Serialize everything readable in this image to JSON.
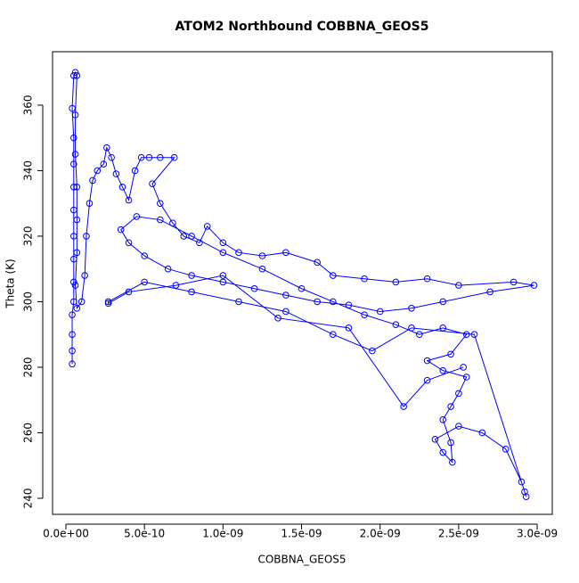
{
  "chart_data": {
    "type": "line-points",
    "title": "ATOM2 Northbound COBBNA_GEOS5",
    "x_label": "COBBNA_GEOS5",
    "y_label": "Theta (K)",
    "color": "#0000ff",
    "grid": false,
    "xlim": [
      -8.5e-11,
      3.096e-09
    ],
    "ylim": [
      235.1,
      376.3
    ],
    "xticks": [
      {
        "value": 0,
        "label": "0.0e+00"
      },
      {
        "value": 5e-10,
        "label": "5.0e-10"
      },
      {
        "value": 1e-09,
        "label": "1.0e-09"
      },
      {
        "value": 1.5e-09,
        "label": "1.5e-09"
      },
      {
        "value": 2e-09,
        "label": "2.0e-09"
      },
      {
        "value": 2.5e-09,
        "label": "2.5e-09"
      },
      {
        "value": 3e-09,
        "label": "3.0e-09"
      }
    ],
    "yticks": [
      240,
      260,
      280,
      300,
      320,
      340,
      360
    ],
    "x": [
      4e-11,
      4e-11,
      4e-11,
      4e-11,
      5e-11,
      5e-11,
      5e-11,
      5e-11,
      5e-11,
      5e-11,
      5e-11,
      5e-11,
      4e-11,
      5e-11,
      6e-11,
      7e-11,
      6e-11,
      6e-11,
      7e-11,
      7e-11,
      7e-11,
      6e-11,
      7e-11,
      1e-10,
      1.2e-10,
      1.3e-10,
      1.5e-10,
      1.7e-10,
      2e-10,
      2.4e-10,
      2.6e-10,
      2.9e-10,
      3.2e-10,
      3.6e-10,
      4e-10,
      4.4e-10,
      4.8e-10,
      5.3e-10,
      6e-10,
      6.9e-10,
      5.5e-10,
      6e-10,
      6.8e-10,
      7.5e-10,
      8.5e-10,
      9e-10,
      1e-09,
      1.1e-09,
      1.25e-09,
      1.4e-09,
      1.6e-09,
      1.7e-09,
      1.9e-09,
      2.1e-09,
      2.3e-09,
      2.5e-09,
      2.85e-09,
      2.98e-09,
      2.7e-09,
      2.4e-09,
      2.2e-09,
      2e-09,
      1.8e-09,
      1.6e-09,
      1.4e-09,
      1.2e-09,
      1e-09,
      8e-10,
      6.5e-10,
      5e-10,
      4e-10,
      3.5e-10,
      4.5e-10,
      6e-10,
      8e-10,
      1e-09,
      1.25e-09,
      1.5e-09,
      1.7e-09,
      1.9e-09,
      2.1e-09,
      2.25e-09,
      2.4e-09,
      2.55e-09,
      2.45e-09,
      2.3e-09,
      2.4e-09,
      2.55e-09,
      2.5e-09,
      2.45e-09,
      2.4e-09,
      2.45e-09,
      2.46e-09,
      2.4e-09,
      2.35e-09,
      2.5e-09,
      2.65e-09,
      2.8e-09,
      2.9e-09,
      2.92e-09,
      2.93e-09,
      2.6e-09,
      2.2e-09,
      1.95e-09,
      1.7e-09,
      1.4e-09,
      1.1e-09,
      8e-10,
      5e-10,
      2.7e-10,
      2.7e-10,
      4e-10,
      7e-10,
      1e-09,
      1.35e-09,
      1.8e-09,
      2.15e-09,
      2.3e-09,
      2.53e-09
    ],
    "values": [
      281,
      285,
      290,
      296,
      300,
      306,
      313,
      320,
      328,
      335,
      342,
      350,
      359,
      369,
      370,
      369,
      357,
      345,
      335,
      325,
      315,
      305,
      298,
      300,
      308,
      320,
      330,
      337,
      340,
      342,
      347,
      344,
      339,
      335,
      331,
      340,
      344,
      344,
      344,
      344,
      336,
      330,
      324,
      320,
      318,
      323,
      318,
      315,
      314,
      315,
      312,
      308,
      307,
      306,
      307,
      305,
      306,
      305,
      303,
      300,
      298,
      297,
      299,
      300,
      302,
      304,
      306,
      308,
      310,
      314,
      318,
      322,
      326,
      325,
      320,
      315,
      310,
      304,
      300,
      296,
      293,
      290,
      292,
      290,
      284,
      282,
      279,
      277,
      272,
      268,
      264,
      257,
      251,
      254,
      258,
      262,
      260,
      255,
      245,
      242,
      240.5,
      290,
      292,
      285,
      290,
      297,
      300,
      303,
      306,
      300,
      299.5,
      303,
      305,
      308,
      295,
      292,
      268,
      276,
      280
    ]
  }
}
